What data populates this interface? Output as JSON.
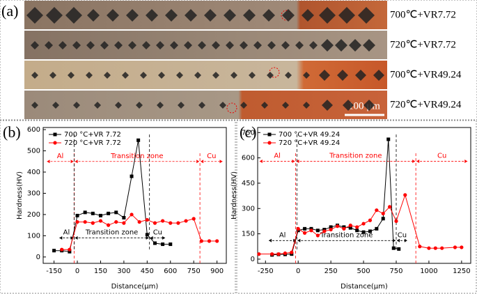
{
  "micrograph": {
    "label": "(a)",
    "rows": [
      "700℃+VR7.72",
      "720℃+VR7.72",
      "700℃+VR49.24",
      "720℃+VR49.24"
    ],
    "scale_bar": "100 μm"
  },
  "chart_data": [
    {
      "type": "line",
      "panel_label": "(b)",
      "xlabel": "Distance(μm)",
      "ylabel": "Hardness(HV)",
      "xlim": [
        -220,
        960
      ],
      "ylim": [
        -30,
        610
      ],
      "xticks": [
        -150,
        0,
        150,
        300,
        450,
        600,
        750,
        900
      ],
      "yticks": [
        0,
        100,
        200,
        300,
        400,
        500,
        600
      ],
      "series": [
        {
          "name": "700 °C+VR 7.72",
          "color": "#000000",
          "marker": "square",
          "x": [
            -150,
            -100,
            -50,
            0,
            50,
            100,
            150,
            200,
            250,
            300,
            350,
            393,
            450,
            500,
            550,
            600
          ],
          "values": [
            30,
            30,
            25,
            195,
            210,
            205,
            195,
            205,
            210,
            185,
            380,
            550,
            105,
            65,
            60,
            60
          ]
        },
        {
          "name": "720 °C+VR 7.72",
          "color": "#ff0000",
          "marker": "circle",
          "x": [
            -100,
            -50,
            0,
            50,
            100,
            150,
            200,
            250,
            300,
            350,
            400,
            450,
            500,
            550,
            600,
            650,
            700,
            750,
            800,
            850,
            900
          ],
          "values": [
            35,
            35,
            165,
            165,
            160,
            170,
            150,
            165,
            160,
            200,
            165,
            175,
            160,
            170,
            160,
            160,
            170,
            180,
            75,
            75,
            75
          ]
        }
      ],
      "zones": [
        {
          "color": "#ff0000",
          "y": 450,
          "span": [
            -200,
            940
          ],
          "bounds": [
            -20,
            790
          ],
          "labels": [
            "Al",
            "Transition zone",
            "Cu"
          ]
        },
        {
          "color": "#000000",
          "y": 90,
          "span": [
            -120,
            570
          ],
          "bounds": [
            -20,
            465
          ],
          "labels": [
            "Al",
            "Transition zone",
            "Cu"
          ]
        }
      ]
    },
    {
      "type": "line",
      "panel_label": "(c)",
      "xlabel": "Distance(μm)",
      "ylabel": "Hardness(HV)",
      "xlim": [
        -310,
        1320
      ],
      "ylim": [
        -25,
        780
      ],
      "xticks": [
        -250,
        0,
        250,
        500,
        750,
        1000,
        1250
      ],
      "yticks": [
        0,
        150,
        300,
        450,
        600,
        750
      ],
      "series": [
        {
          "name": "700 °C+VR 49.24",
          "color": "#000000",
          "marker": "square",
          "x": [
            -200,
            -150,
            -100,
            -50,
            0,
            50,
            100,
            150,
            200,
            250,
            300,
            350,
            400,
            450,
            500,
            550,
            600,
            650,
            690,
            730,
            770
          ],
          "values": [
            25,
            28,
            28,
            30,
            170,
            180,
            180,
            170,
            175,
            190,
            200,
            190,
            185,
            170,
            160,
            165,
            180,
            240,
            710,
            65,
            60
          ]
        },
        {
          "name": "720 °C+VR 49.24",
          "color": "#ff0000",
          "marker": "circle",
          "x": [
            -300,
            -200,
            -150,
            -100,
            -50,
            0,
            50,
            100,
            150,
            200,
            250,
            300,
            350,
            400,
            450,
            500,
            550,
            600,
            650,
            700,
            750,
            818,
            930,
            1000,
            1050,
            1100,
            1200,
            1250
          ],
          "values": [
            30,
            30,
            30,
            35,
            40,
            180,
            155,
            170,
            140,
            165,
            175,
            195,
            180,
            200,
            190,
            210,
            230,
            290,
            270,
            310,
            225,
            380,
            75,
            65,
            65,
            65,
            70,
            70
          ]
        }
      ],
      "zones": [
        {
          "color": "#ff0000",
          "y": 580,
          "span": [
            -300,
            1300
          ],
          "bounds": [
            -20,
            900
          ],
          "labels": [
            "Al",
            "Transition zone",
            "Cu"
          ]
        },
        {
          "color": "#000000",
          "y": 110,
          "span": [
            -230,
            840
          ],
          "bounds": [
            -10,
            750
          ],
          "labels": [
            "Al",
            "Transition zone",
            "Cu"
          ]
        }
      ]
    }
  ]
}
